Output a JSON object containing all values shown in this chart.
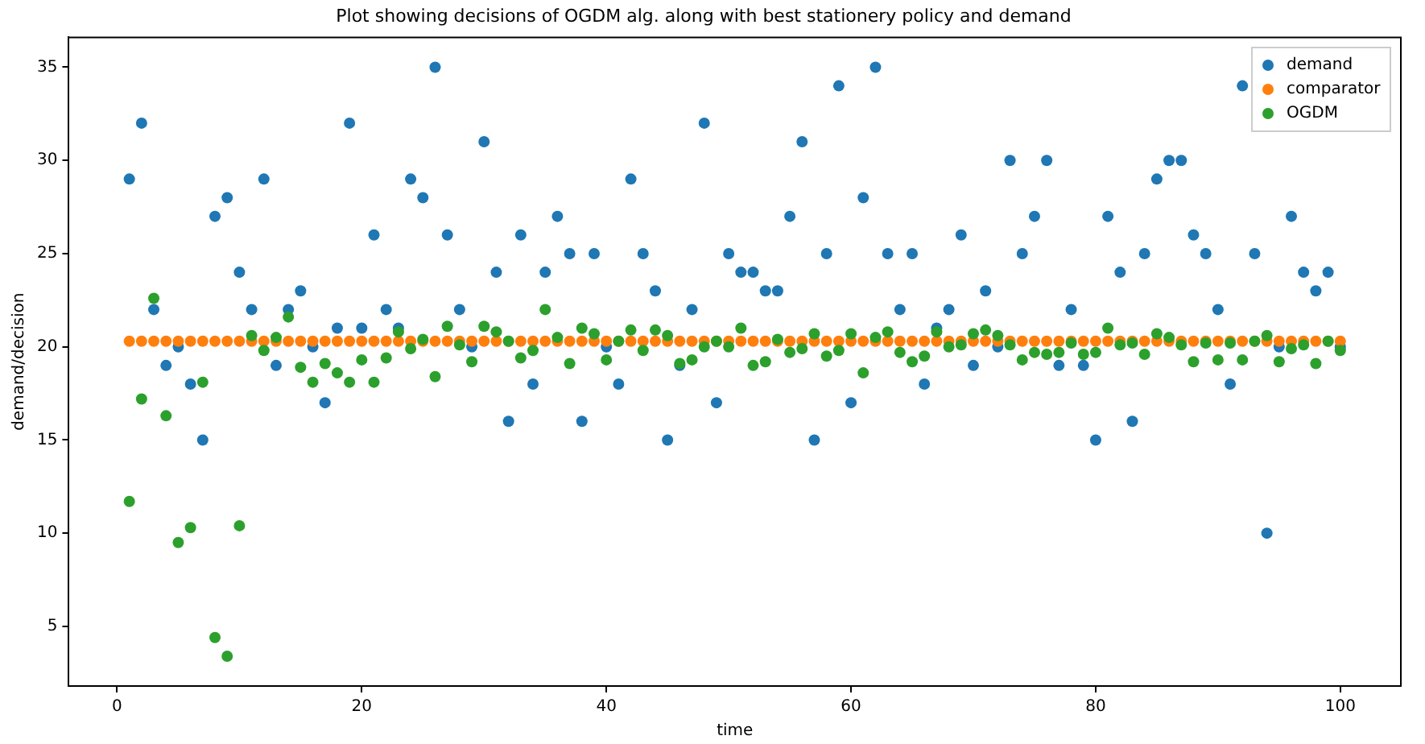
{
  "chart_data": {
    "type": "scatter",
    "title": "Plot showing decisions of OGDM alg. along with best stationery policy and demand",
    "xlabel": "time",
    "ylabel": "demand/decision",
    "x": [
      1,
      2,
      3,
      4,
      5,
      6,
      7,
      8,
      9,
      10,
      11,
      12,
      13,
      14,
      15,
      16,
      17,
      18,
      19,
      20,
      21,
      22,
      23,
      24,
      25,
      26,
      27,
      28,
      29,
      30,
      31,
      32,
      33,
      34,
      35,
      36,
      37,
      38,
      39,
      40,
      41,
      42,
      43,
      44,
      45,
      46,
      47,
      48,
      49,
      50,
      51,
      52,
      53,
      54,
      55,
      56,
      57,
      58,
      59,
      60,
      61,
      62,
      63,
      64,
      65,
      66,
      67,
      68,
      69,
      70,
      71,
      72,
      73,
      74,
      75,
      76,
      77,
      78,
      79,
      80,
      81,
      82,
      83,
      84,
      85,
      86,
      87,
      88,
      89,
      90,
      91,
      92,
      93,
      94,
      95,
      96,
      97,
      98,
      99,
      100
    ],
    "series": [
      {
        "name": "demand",
        "color": "#1f77b4",
        "values": [
          29,
          32,
          22,
          19,
          20,
          18,
          15,
          27,
          28,
          24,
          22,
          29,
          19,
          22,
          23,
          20,
          17,
          21,
          32,
          21,
          26,
          22,
          21,
          29,
          28,
          35,
          26,
          22,
          20,
          31,
          24,
          16,
          26,
          18,
          24,
          27,
          25,
          16,
          25,
          20,
          18,
          29,
          25,
          23,
          15,
          19,
          22,
          32,
          17,
          25,
          24,
          24,
          23,
          23,
          27,
          31,
          15,
          25,
          34,
          17,
          28,
          35,
          25,
          22,
          25,
          18,
          21,
          22,
          26,
          19,
          23,
          20,
          30,
          25,
          27,
          30,
          19,
          22,
          19,
          15,
          27,
          24,
          16,
          25,
          29,
          30,
          30,
          26,
          25,
          22,
          18,
          34,
          25,
          10,
          20,
          27,
          24,
          23,
          24,
          20
        ]
      },
      {
        "name": "comparator",
        "color": "#ff7f0e",
        "values": [
          20.3,
          20.3,
          20.3,
          20.3,
          20.3,
          20.3,
          20.3,
          20.3,
          20.3,
          20.3,
          20.3,
          20.3,
          20.3,
          20.3,
          20.3,
          20.3,
          20.3,
          20.3,
          20.3,
          20.3,
          20.3,
          20.3,
          20.3,
          20.3,
          20.3,
          20.3,
          20.3,
          20.3,
          20.3,
          20.3,
          20.3,
          20.3,
          20.3,
          20.3,
          20.3,
          20.3,
          20.3,
          20.3,
          20.3,
          20.3,
          20.3,
          20.3,
          20.3,
          20.3,
          20.3,
          20.3,
          20.3,
          20.3,
          20.3,
          20.3,
          20.3,
          20.3,
          20.3,
          20.3,
          20.3,
          20.3,
          20.3,
          20.3,
          20.3,
          20.3,
          20.3,
          20.3,
          20.3,
          20.3,
          20.3,
          20.3,
          20.3,
          20.3,
          20.3,
          20.3,
          20.3,
          20.3,
          20.3,
          20.3,
          20.3,
          20.3,
          20.3,
          20.3,
          20.3,
          20.3,
          20.3,
          20.3,
          20.3,
          20.3,
          20.3,
          20.3,
          20.3,
          20.3,
          20.3,
          20.3,
          20.3,
          20.3,
          20.3,
          20.3,
          20.3,
          20.3,
          20.3,
          20.3,
          20.3,
          20.3
        ]
      },
      {
        "name": "OGDM",
        "color": "#2ca02c",
        "values": [
          11.7,
          17.2,
          22.6,
          16.3,
          9.5,
          10.3,
          18.1,
          4.4,
          3.4,
          10.4,
          20.6,
          19.8,
          20.5,
          21.6,
          18.9,
          18.1,
          19.1,
          18.6,
          18.1,
          19.3,
          18.1,
          19.4,
          20.8,
          19.9,
          20.4,
          18.4,
          21.1,
          20.1,
          19.2,
          21.1,
          20.8,
          20.3,
          19.4,
          19.8,
          22.0,
          20.5,
          19.1,
          21.0,
          20.7,
          19.3,
          20.3,
          20.9,
          19.8,
          20.9,
          20.6,
          19.1,
          19.3,
          20.0,
          20.3,
          20.0,
          21.0,
          19.0,
          19.2,
          20.4,
          19.7,
          19.9,
          20.7,
          19.5,
          19.8,
          20.7,
          18.6,
          20.5,
          20.8,
          19.7,
          19.2,
          19.5,
          20.8,
          20.0,
          20.1,
          20.7,
          20.9,
          20.6,
          20.1,
          19.3,
          19.7,
          19.6,
          19.7,
          20.2,
          19.6,
          19.7,
          21.0,
          20.1,
          20.2,
          19.6,
          20.7,
          20.5,
          20.1,
          19.2,
          20.2,
          19.3,
          20.2,
          19.3,
          20.3,
          20.6,
          19.2,
          19.9,
          20.1,
          19.1,
          20.3,
          19.8
        ]
      }
    ],
    "xlim": [
      -3.95,
      104.95
    ],
    "ylim": [
      1.8,
      36.6
    ],
    "xticks": [
      0,
      20,
      40,
      60,
      80,
      100
    ],
    "yticks": [
      5,
      10,
      15,
      20,
      25,
      30,
      35
    ],
    "grid": false,
    "legend": "top right",
    "marker": "circle"
  }
}
